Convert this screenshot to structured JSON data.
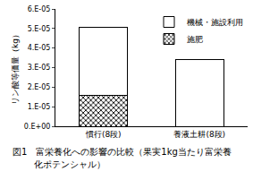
{
  "chart_data": {
    "type": "bar",
    "stacked": true,
    "title": "図1　富栄養化への影響の比較（果実1kg当たり富栄養化ポテンシャル）",
    "y_label": "リン酸等価量（kg）",
    "categories": [
      "慣行(8段)",
      "養液土耕(8段)"
    ],
    "series": [
      {
        "name": "施肥",
        "color": "#ffffff",
        "marker": "x",
        "values": [
          1.6e-05,
          0
        ]
      },
      {
        "name": "機械・施設利用",
        "color": "#ffffff",
        "values": [
          3.45e-05,
          3.4e-05
        ]
      }
    ],
    "ylim": [
      0,
      6e-05
    ],
    "yticks": [
      {
        "value": 0,
        "label": "0.E+00"
      },
      {
        "value": 1e-05,
        "label": "1.E-05"
      },
      {
        "value": 2e-05,
        "label": "2.E-05"
      },
      {
        "value": 3e-05,
        "label": "3.E-05"
      },
      {
        "value": 4e-05,
        "label": "4.E-05"
      },
      {
        "value": 5e-05,
        "label": "5.E-05"
      },
      {
        "value": 6e-05,
        "label": "6.E-05"
      }
    ],
    "grid": false,
    "legend": "top-right"
  }
}
